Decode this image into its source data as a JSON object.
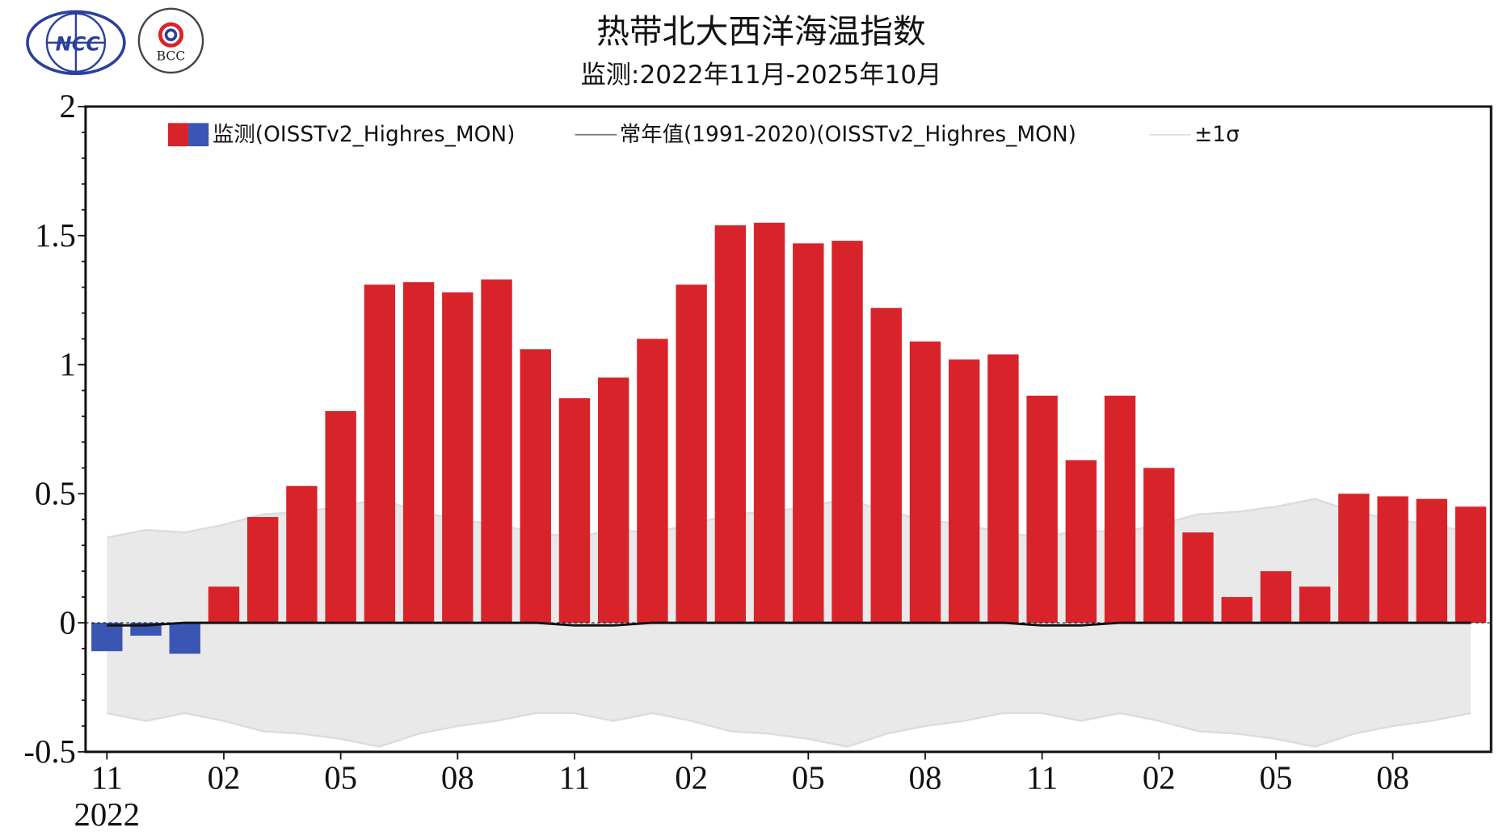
{
  "chart_data": {
    "type": "bar",
    "title": "热带北大西洋海温指数",
    "subtitle": "监测:2022年11月-2025年10月",
    "xlabel": "",
    "ylabel": "",
    "ylim": [
      -0.5,
      2
    ],
    "yticks": [
      "2",
      "1.5",
      "1",
      "0.5",
      "0",
      "-0.5"
    ],
    "ytick_values": [
      2,
      1.5,
      1,
      0.5,
      0,
      -0.5
    ],
    "xticks": [
      {
        "label": "11",
        "index": 0
      },
      {
        "label": "02",
        "index": 3
      },
      {
        "label": "05",
        "index": 6
      },
      {
        "label": "08",
        "index": 9
      },
      {
        "label": "11",
        "index": 12
      },
      {
        "label": "02",
        "index": 15
      },
      {
        "label": "05",
        "index": 18
      },
      {
        "label": "08",
        "index": 21
      },
      {
        "label": "11",
        "index": 24
      },
      {
        "label": "02",
        "index": 27
      },
      {
        "label": "05",
        "index": 30
      },
      {
        "label": "08",
        "index": 33
      }
    ],
    "year_label": "2022",
    "legend": {
      "placement": "top",
      "monitor": "监测(OISSTv2_Highres_MON)",
      "normal": "常年值(1991-2020)(OISSTv2_Highres_MON)",
      "sigma": "±1σ"
    },
    "colors": {
      "positive": "#d9232a",
      "negative": "#3a55b4",
      "band": "#e9e9e9",
      "band_edge": "#dcdcdc",
      "normal": "#111111"
    },
    "categories": [
      "2022-11",
      "2022-12",
      "2023-01",
      "2023-02",
      "2023-03",
      "2023-04",
      "2023-05",
      "2023-06",
      "2023-07",
      "2023-08",
      "2023-09",
      "2023-10",
      "2023-11",
      "2023-12",
      "2024-01",
      "2024-02",
      "2024-03",
      "2024-04",
      "2024-05",
      "2024-06",
      "2024-07",
      "2024-08",
      "2024-09",
      "2024-10",
      "2024-11",
      "2024-12",
      "2025-01",
      "2025-02",
      "2025-03",
      "2025-04",
      "2025-05",
      "2025-06",
      "2025-07",
      "2025-08",
      "2025-09",
      "2025-10"
    ],
    "series": [
      {
        "name": "监测",
        "values": [
          -0.11,
          -0.05,
          -0.12,
          0.14,
          0.41,
          0.53,
          0.82,
          1.31,
          1.32,
          1.28,
          1.33,
          1.06,
          0.87,
          0.95,
          1.1,
          1.31,
          1.54,
          1.55,
          1.47,
          1.48,
          1.22,
          1.09,
          1.02,
          1.04,
          0.88,
          0.63,
          0.88,
          0.6,
          0.35,
          0.1,
          0.2,
          0.14,
          0.5,
          0.49,
          0.48,
          0.45
        ]
      },
      {
        "name": "常年值",
        "values": [
          -0.01,
          -0.01,
          0,
          0,
          0,
          0,
          0,
          0,
          0,
          0,
          0,
          0,
          -0.01,
          -0.01,
          0,
          0,
          0,
          0,
          0,
          0,
          0,
          0,
          0,
          0,
          -0.01,
          -0.01,
          0,
          0,
          0,
          0,
          0,
          0,
          0,
          0,
          0,
          0
        ]
      },
      {
        "name": "±1σ",
        "values": [
          0.34,
          0.37,
          0.35,
          0.38,
          0.42,
          0.43,
          0.45,
          0.48,
          0.43,
          0.4,
          0.38,
          0.35,
          0.34,
          0.37,
          0.35,
          0.38,
          0.42,
          0.43,
          0.45,
          0.48,
          0.43,
          0.4,
          0.38,
          0.35,
          0.34,
          0.37,
          0.35,
          0.38,
          0.42,
          0.43,
          0.45,
          0.48,
          0.43,
          0.4,
          0.38,
          0.35
        ]
      }
    ]
  },
  "logos": {
    "left": "NCC",
    "right": "BCC"
  }
}
